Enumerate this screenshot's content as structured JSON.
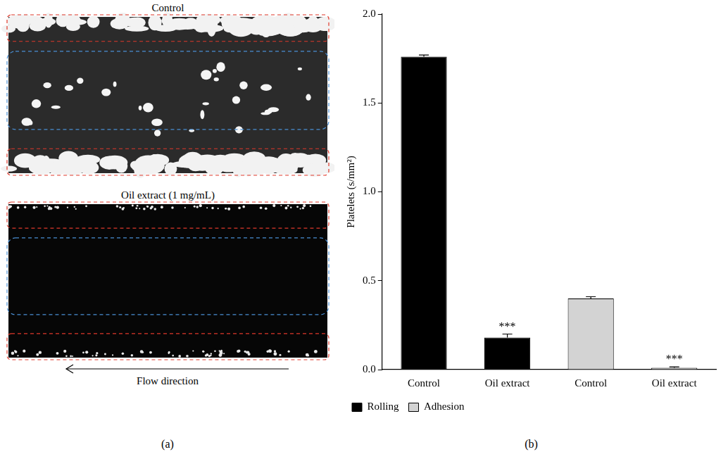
{
  "panel_a": {
    "label": "(a)",
    "images": [
      {
        "title": "Control"
      },
      {
        "title": "Oil extract (1 mg/mL)"
      }
    ],
    "arrow_label": "Flow direction"
  },
  "chart_data": {
    "type": "bar",
    "panel_label": "(b)",
    "y_label": "Platelets (s/mm²)",
    "categories": [
      "Control",
      "Oil extract",
      "Control",
      "Oil extract"
    ],
    "series": [
      {
        "name": "Rolling",
        "color": "#000000",
        "values": [
          1.76,
          0.18,
          null,
          null
        ],
        "errors": [
          0.01,
          0.02,
          null,
          null
        ],
        "significance": [
          null,
          "***",
          null,
          null
        ]
      },
      {
        "name": "Adhesion",
        "color": "#d3d3d3",
        "values": [
          null,
          null,
          0.4,
          0.01
        ],
        "errors": [
          null,
          null,
          0.01,
          0.005
        ],
        "significance": [
          null,
          null,
          null,
          "***"
        ]
      }
    ],
    "ylim": [
      0,
      2
    ],
    "yticks": [
      {
        "value": 0,
        "label": "0.0"
      },
      {
        "value": 0.5,
        "label": "0.5"
      },
      {
        "value": 1,
        "label": "1.0"
      },
      {
        "value": 1.5,
        "label": "1.5"
      },
      {
        "value": 2,
        "label": "2.0"
      }
    ],
    "grid": false,
    "legend": "bottom"
  }
}
